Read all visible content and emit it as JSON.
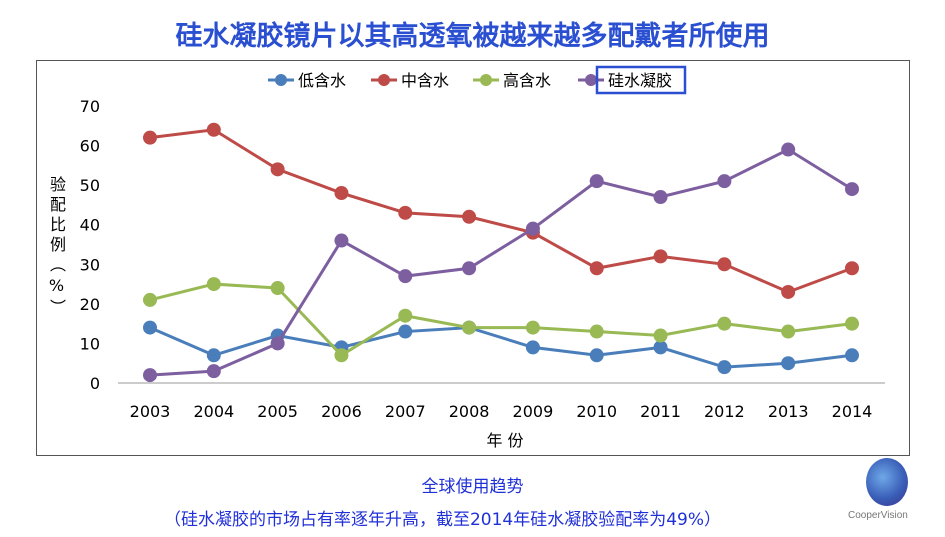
{
  "title": "硅水凝胶镜片以其高透氧被越来越多配戴者所使用",
  "caption": "全球使用趋势",
  "subcaption": "（硅水凝胶的市场占有率逐年升高，截至2014年硅水凝胶验配率为49%）",
  "logo_text": "CooperVision",
  "chart_data": {
    "type": "line",
    "xlabel": "年 份",
    "ylabel": "验配比例（%）",
    "ylim": [
      0,
      70
    ],
    "yticks": [
      0,
      10,
      20,
      30,
      40,
      50,
      60,
      70
    ],
    "grid": false,
    "legend_position": "top",
    "categories": [
      "2003",
      "2004",
      "2005",
      "2006",
      "2007",
      "2008",
      "2009",
      "2010",
      "2011",
      "2012",
      "2013",
      "2014"
    ],
    "series": [
      {
        "name": "低含水",
        "color": "#4a7ebb",
        "values": [
          14,
          7,
          12,
          9,
          13,
          14,
          9,
          7,
          9,
          4,
          5,
          7
        ]
      },
      {
        "name": "中含水",
        "color": "#be4b48",
        "values": [
          62,
          64,
          54,
          48,
          43,
          42,
          38,
          29,
          32,
          30,
          23,
          29
        ]
      },
      {
        "name": "高含水",
        "color": "#98b954",
        "values": [
          21,
          25,
          24,
          7,
          17,
          14,
          14,
          13,
          12,
          15,
          13,
          15
        ]
      },
      {
        "name": "硅水凝胶",
        "color": "#7d5fa0",
        "values": [
          2,
          3,
          10,
          36,
          27,
          29,
          39,
          51,
          47,
          51,
          59,
          49
        ]
      }
    ]
  }
}
